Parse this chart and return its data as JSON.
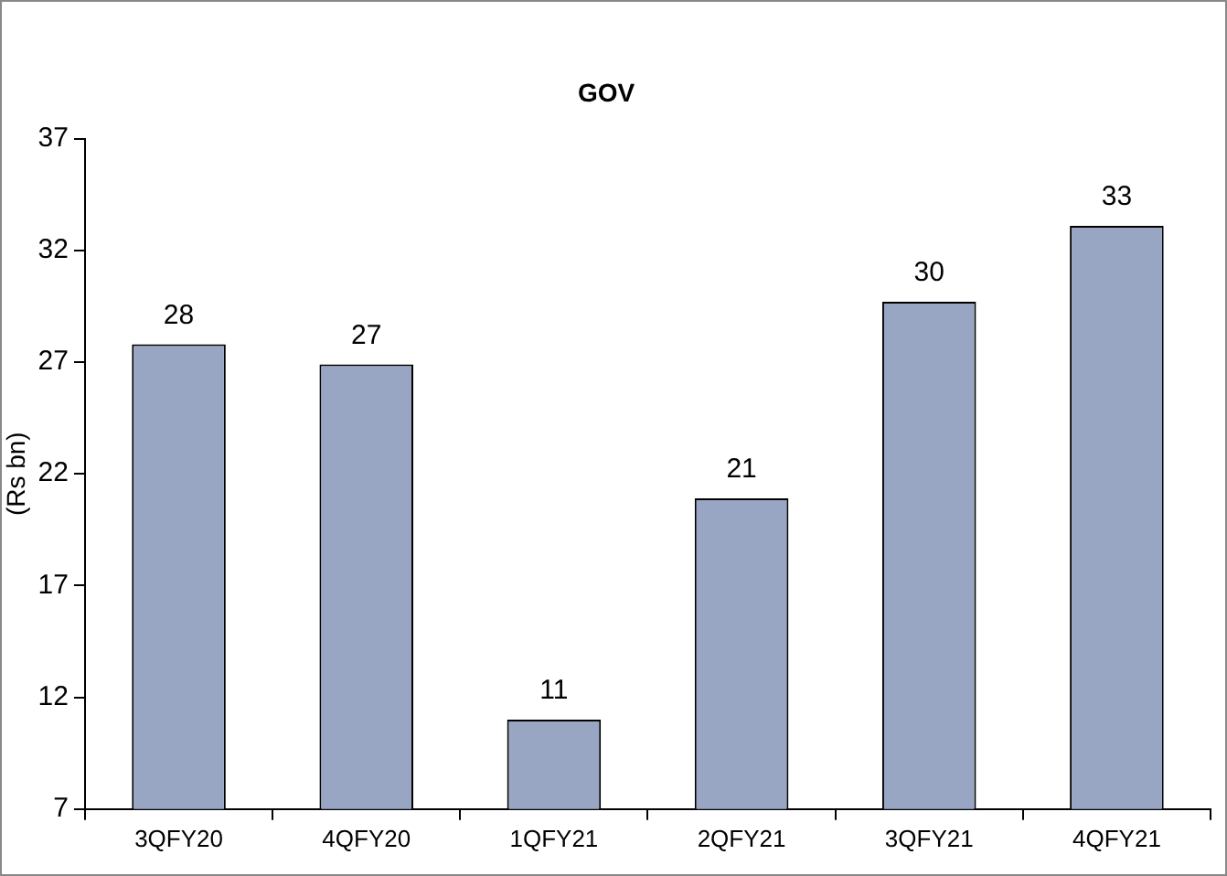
{
  "chart_data": {
    "type": "bar",
    "title": "GOV",
    "ylabel": "(Rs bn)",
    "categories": [
      "3QFY20",
      "4QFY20",
      "1QFY21",
      "2QFY21",
      "3QFY21",
      "4QFY21"
    ],
    "values": [
      27.8,
      26.9,
      11,
      20.9,
      29.7,
      33.1
    ],
    "value_labels": [
      "28",
      "27",
      "11",
      "21",
      "30",
      "33"
    ],
    "color": "#98a6c4",
    "ylim": [
      7,
      37
    ],
    "yticks": [
      7,
      12,
      17,
      22,
      27,
      32,
      37
    ],
    "grid": false,
    "legend": false
  }
}
